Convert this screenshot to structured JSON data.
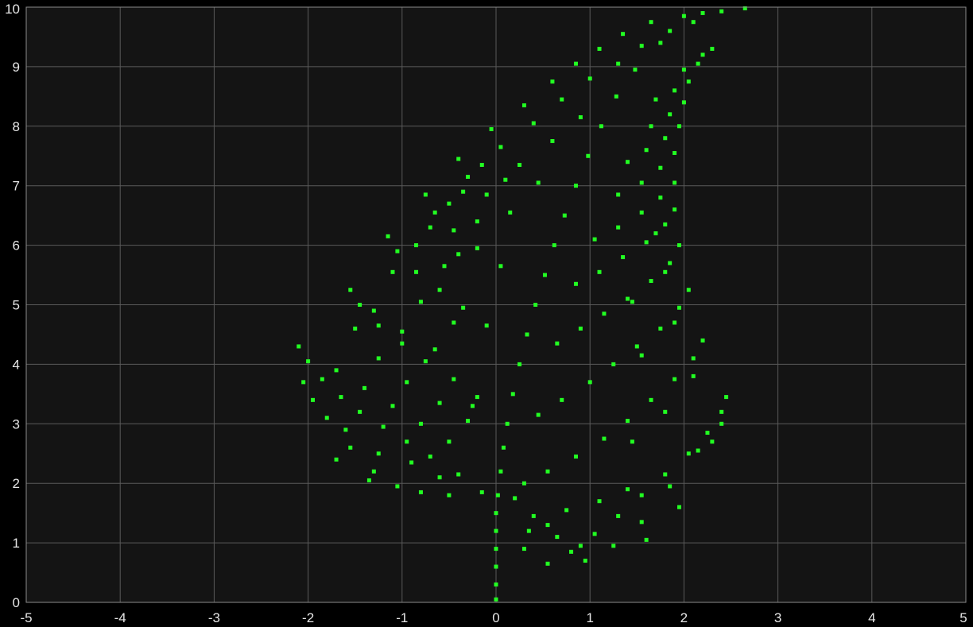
{
  "chart_data": {
    "type": "scatter",
    "title": "",
    "xlabel": "",
    "ylabel": "",
    "xlim": [
      -5,
      5
    ],
    "ylim": [
      0,
      10
    ],
    "x_ticks": [
      -5,
      -4,
      -3,
      -2,
      -1,
      0,
      1,
      2,
      3,
      4,
      5
    ],
    "y_ticks": [
      0,
      1,
      2,
      3,
      4,
      5,
      6,
      7,
      8,
      9,
      10
    ],
    "x_tick_labels": [
      "-5",
      "-4",
      "-3",
      "-2",
      "-1",
      "0",
      "1",
      "2",
      "3",
      "4",
      "5"
    ],
    "y_tick_labels": [
      "0",
      "1",
      "2",
      "3",
      "4",
      "5",
      "6",
      "7",
      "8",
      "9",
      "10"
    ],
    "grid": true,
    "legend": "none",
    "series": [
      {
        "marker": "square",
        "color": "#22ff22",
        "points": [
          [
            0.0,
            0.05
          ],
          [
            0.0,
            0.3
          ],
          [
            0.0,
            0.6
          ],
          [
            0.0,
            0.9
          ],
          [
            0.0,
            1.2
          ],
          [
            0.0,
            1.5
          ],
          [
            0.02,
            1.8
          ],
          [
            0.05,
            2.2
          ],
          [
            0.08,
            2.6
          ],
          [
            0.12,
            3.0
          ],
          [
            0.18,
            3.5
          ],
          [
            0.25,
            4.0
          ],
          [
            0.33,
            4.5
          ],
          [
            0.42,
            5.0
          ],
          [
            0.52,
            5.5
          ],
          [
            0.62,
            6.0
          ],
          [
            0.73,
            6.5
          ],
          [
            0.85,
            7.0
          ],
          [
            0.98,
            7.5
          ],
          [
            1.12,
            8.0
          ],
          [
            1.28,
            8.5
          ],
          [
            1.48,
            8.95
          ],
          [
            1.75,
            9.4
          ],
          [
            2.1,
            9.75
          ],
          [
            2.4,
            9.93
          ],
          [
            2.65,
            9.98
          ],
          [
            -2.1,
            4.3
          ],
          [
            -2.0,
            4.05
          ],
          [
            -1.85,
            3.75
          ],
          [
            -1.65,
            3.45
          ],
          [
            -1.45,
            3.2
          ],
          [
            -1.2,
            2.95
          ],
          [
            -0.95,
            2.7
          ],
          [
            -0.7,
            2.45
          ],
          [
            -0.4,
            2.15
          ],
          [
            -0.15,
            1.85
          ],
          [
            -2.05,
            3.7
          ],
          [
            -1.8,
            3.1
          ],
          [
            -1.55,
            2.6
          ],
          [
            -1.3,
            2.2
          ],
          [
            -1.05,
            1.95
          ],
          [
            -0.8,
            1.85
          ],
          [
            -0.5,
            1.8
          ],
          [
            -1.95,
            3.4
          ],
          [
            -1.6,
            2.9
          ],
          [
            -1.25,
            2.5
          ],
          [
            -1.55,
            5.25
          ],
          [
            -1.45,
            5.0
          ],
          [
            -1.25,
            4.65
          ],
          [
            -1.0,
            4.35
          ],
          [
            -0.75,
            4.05
          ],
          [
            -0.45,
            3.75
          ],
          [
            -0.2,
            3.45
          ],
          [
            -1.5,
            4.6
          ],
          [
            -1.25,
            4.1
          ],
          [
            -0.95,
            3.7
          ],
          [
            -0.6,
            3.35
          ],
          [
            -0.3,
            3.05
          ],
          [
            -1.15,
            6.15
          ],
          [
            -1.05,
            5.9
          ],
          [
            -0.85,
            5.55
          ],
          [
            -0.6,
            5.25
          ],
          [
            -0.35,
            4.95
          ],
          [
            -0.1,
            4.65
          ],
          [
            -1.1,
            5.55
          ],
          [
            -0.8,
            5.05
          ],
          [
            -0.45,
            4.7
          ],
          [
            -0.75,
            6.85
          ],
          [
            -0.65,
            6.55
          ],
          [
            -0.45,
            6.25
          ],
          [
            -0.2,
            5.95
          ],
          [
            0.05,
            5.65
          ],
          [
            -0.7,
            6.3
          ],
          [
            -0.4,
            5.85
          ],
          [
            -0.4,
            7.45
          ],
          [
            -0.3,
            7.15
          ],
          [
            -0.1,
            6.85
          ],
          [
            0.15,
            6.55
          ],
          [
            -0.35,
            6.9
          ],
          [
            -0.05,
            7.95
          ],
          [
            0.05,
            7.65
          ],
          [
            0.25,
            7.35
          ],
          [
            0.45,
            7.05
          ],
          [
            0.3,
            8.35
          ],
          [
            0.4,
            8.05
          ],
          [
            0.6,
            7.75
          ],
          [
            0.6,
            8.75
          ],
          [
            0.7,
            8.45
          ],
          [
            0.9,
            8.15
          ],
          [
            0.85,
            9.05
          ],
          [
            1.0,
            8.8
          ],
          [
            1.1,
            9.3
          ],
          [
            1.3,
            9.05
          ],
          [
            1.35,
            9.55
          ],
          [
            1.55,
            9.35
          ],
          [
            1.65,
            9.75
          ],
          [
            1.85,
            9.6
          ],
          [
            2.0,
            9.85
          ],
          [
            2.2,
            9.9
          ],
          [
            2.45,
            3.45
          ],
          [
            2.4,
            3.2
          ],
          [
            2.25,
            2.85
          ],
          [
            2.05,
            2.5
          ],
          [
            1.8,
            2.15
          ],
          [
            1.55,
            1.8
          ],
          [
            1.3,
            1.45
          ],
          [
            1.05,
            1.15
          ],
          [
            0.8,
            0.85
          ],
          [
            0.55,
            0.65
          ],
          [
            2.4,
            3.0
          ],
          [
            2.15,
            2.55
          ],
          [
            1.85,
            1.95
          ],
          [
            1.55,
            1.35
          ],
          [
            1.25,
            0.95
          ],
          [
            0.95,
            0.7
          ],
          [
            2.3,
            2.7
          ],
          [
            1.95,
            1.6
          ],
          [
            1.6,
            1.05
          ],
          [
            0.2,
            1.75
          ],
          [
            0.4,
            1.45
          ],
          [
            0.65,
            1.1
          ],
          [
            0.3,
            0.9
          ],
          [
            0.55,
            1.3
          ],
          [
            2.2,
            4.4
          ],
          [
            2.1,
            4.1
          ],
          [
            1.9,
            3.75
          ],
          [
            1.65,
            3.4
          ],
          [
            1.4,
            3.05
          ],
          [
            1.15,
            2.75
          ],
          [
            0.85,
            2.45
          ],
          [
            0.55,
            2.2
          ],
          [
            0.3,
            2.0
          ],
          [
            2.1,
            3.8
          ],
          [
            1.8,
            3.2
          ],
          [
            1.45,
            2.7
          ],
          [
            2.05,
            5.25
          ],
          [
            1.95,
            4.95
          ],
          [
            1.75,
            4.6
          ],
          [
            1.5,
            4.3
          ],
          [
            1.25,
            4.0
          ],
          [
            1.0,
            3.7
          ],
          [
            0.7,
            3.4
          ],
          [
            0.45,
            3.15
          ],
          [
            1.9,
            4.7
          ],
          [
            1.55,
            4.15
          ],
          [
            1.95,
            6.0
          ],
          [
            1.85,
            5.7
          ],
          [
            1.65,
            5.4
          ],
          [
            1.4,
            5.1
          ],
          [
            1.15,
            4.85
          ],
          [
            0.9,
            4.6
          ],
          [
            0.65,
            4.35
          ],
          [
            1.8,
            5.55
          ],
          [
            1.45,
            5.05
          ],
          [
            1.9,
            6.6
          ],
          [
            1.8,
            6.35
          ],
          [
            1.6,
            6.05
          ],
          [
            1.35,
            5.8
          ],
          [
            1.1,
            5.55
          ],
          [
            0.85,
            5.35
          ],
          [
            1.7,
            6.2
          ],
          [
            1.9,
            7.05
          ],
          [
            1.75,
            6.8
          ],
          [
            1.55,
            6.55
          ],
          [
            1.3,
            6.3
          ],
          [
            1.05,
            6.1
          ],
          [
            1.9,
            7.55
          ],
          [
            1.75,
            7.3
          ],
          [
            1.55,
            7.05
          ],
          [
            1.3,
            6.85
          ],
          [
            1.95,
            8.0
          ],
          [
            1.8,
            7.8
          ],
          [
            1.6,
            7.6
          ],
          [
            1.4,
            7.4
          ],
          [
            2.0,
            8.4
          ],
          [
            1.85,
            8.2
          ],
          [
            1.65,
            8.0
          ],
          [
            2.05,
            8.75
          ],
          [
            1.9,
            8.6
          ],
          [
            1.7,
            8.45
          ],
          [
            2.15,
            9.05
          ],
          [
            2.0,
            8.95
          ],
          [
            2.3,
            9.3
          ],
          [
            2.2,
            9.2
          ],
          [
            -1.7,
            3.9
          ],
          [
            -1.4,
            3.6
          ],
          [
            -1.1,
            3.3
          ],
          [
            -0.8,
            3.0
          ],
          [
            -0.5,
            2.7
          ],
          [
            -1.3,
            4.9
          ],
          [
            -1.0,
            4.55
          ],
          [
            -0.65,
            4.25
          ],
          [
            -0.85,
            6.0
          ],
          [
            -0.55,
            5.65
          ],
          [
            -0.5,
            6.7
          ],
          [
            -0.2,
            6.4
          ],
          [
            -0.15,
            7.35
          ],
          [
            0.1,
            7.1
          ],
          [
            -0.25,
            3.3
          ],
          [
            -0.6,
            2.1
          ],
          [
            -0.9,
            2.35
          ],
          [
            -1.7,
            2.4
          ],
          [
            -1.35,
            2.05
          ],
          [
            0.35,
            1.2
          ],
          [
            0.75,
            1.55
          ],
          [
            1.1,
            1.7
          ],
          [
            1.4,
            1.9
          ],
          [
            0.9,
            0.95
          ]
        ]
      }
    ]
  }
}
